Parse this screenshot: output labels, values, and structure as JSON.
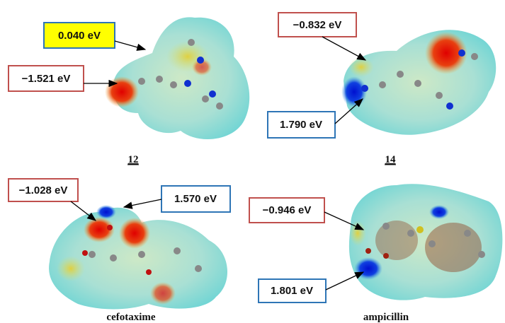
{
  "panels": [
    {
      "label": "12",
      "callouts": [
        "0.040 eV",
        "−1.521 eV"
      ]
    },
    {
      "label": "14",
      "callouts": [
        "−0.832 eV",
        "1.790 eV"
      ]
    },
    {
      "label": "cefotaxime",
      "callouts": [
        "−1.028 eV",
        "1.570 eV"
      ]
    },
    {
      "label": "ampicillin",
      "callouts": [
        "−0.946 eV",
        "1.801 eV"
      ]
    }
  ]
}
